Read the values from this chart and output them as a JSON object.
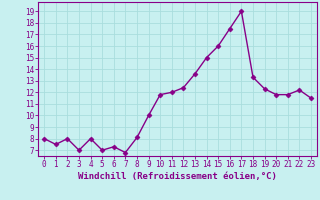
{
  "x": [
    0,
    1,
    2,
    3,
    4,
    5,
    6,
    7,
    8,
    9,
    10,
    11,
    12,
    13,
    14,
    15,
    16,
    17,
    18,
    19,
    20,
    21,
    22,
    23
  ],
  "y": [
    8,
    7.5,
    8,
    7,
    8,
    7,
    7.3,
    6.8,
    8.1,
    10,
    11.8,
    12,
    12.4,
    13.6,
    15,
    16,
    17.5,
    19,
    13.3,
    12.3,
    11.8,
    11.8,
    12.2,
    11.5
  ],
  "line_color": "#880088",
  "marker": "D",
  "marker_size": 2.5,
  "bg_color": "#c8f0f0",
  "grid_color": "#aadddd",
  "xlabel": "Windchill (Refroidissement éolien,°C)",
  "xlim": [
    -0.5,
    23.5
  ],
  "ylim": [
    6.5,
    19.8
  ],
  "yticks": [
    7,
    8,
    9,
    10,
    11,
    12,
    13,
    14,
    15,
    16,
    17,
    18,
    19
  ],
  "xticks": [
    0,
    1,
    2,
    3,
    4,
    5,
    6,
    7,
    8,
    9,
    10,
    11,
    12,
    13,
    14,
    15,
    16,
    17,
    18,
    19,
    20,
    21,
    22,
    23
  ],
  "tick_fontsize": 5.5,
  "xlabel_fontsize": 6.5,
  "spine_color": "#880088",
  "linewidth": 1.0
}
